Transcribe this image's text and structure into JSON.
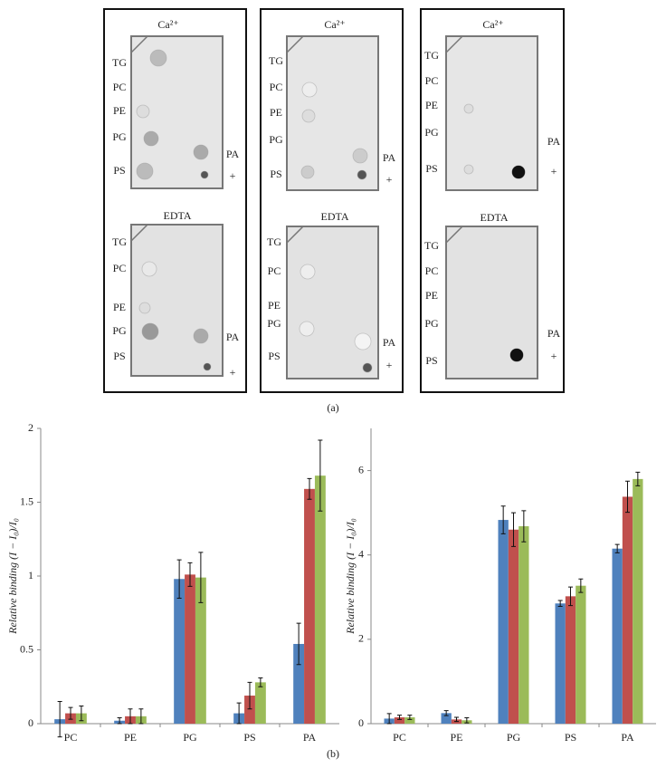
{
  "panel_a": {
    "caption": "(a)",
    "blots": [
      {
        "top": {
          "title": "Ca²⁺",
          "left_labels": [
            "TG",
            "PC",
            "PE",
            "PG",
            "PS"
          ],
          "right_labels": [
            "PA",
            "+"
          ]
        },
        "bottom": {
          "title": "EDTA",
          "left_labels": [
            "TG",
            "PC",
            "PE",
            "PG",
            "PS"
          ],
          "right_labels": [
            "PA",
            "+"
          ]
        }
      },
      {
        "top": {
          "title": "Ca²⁺",
          "left_labels": [
            "TG",
            "PC",
            "PE",
            "PG",
            "PS"
          ],
          "right_labels": [
            "PA",
            "+"
          ]
        },
        "bottom": {
          "title": "EDTA",
          "left_labels": [
            "TG",
            "PC",
            "PE",
            "PG",
            "PS"
          ],
          "right_labels": [
            "PA",
            "+"
          ]
        }
      },
      {
        "top": {
          "title": "Ca²⁺",
          "left_labels": [
            "TG",
            "PC",
            "PE",
            "PG",
            "PS"
          ],
          "right_labels": [
            "PA",
            "+"
          ]
        },
        "bottom": {
          "title": "EDTA",
          "left_labels": [
            "TG",
            "PC",
            "PE",
            "PG",
            "PS"
          ],
          "right_labels": [
            "PA",
            "+"
          ]
        }
      }
    ]
  },
  "panel_b": {
    "caption": "(b)"
  },
  "chart_data": [
    {
      "type": "bar",
      "y_label": "Relative binding (I − I₀)/I₀",
      "categories": [
        "PC",
        "PE",
        "PG",
        "PS",
        "PA"
      ],
      "series": [
        {
          "color": "#4f81bd",
          "values": [
            0.03,
            0.02,
            0.98,
            0.07,
            0.54
          ],
          "errors": [
            0.12,
            0.02,
            0.13,
            0.07,
            0.14
          ]
        },
        {
          "color": "#c0504d",
          "values": [
            0.07,
            0.05,
            1.01,
            0.19,
            1.59
          ],
          "errors": [
            0.04,
            0.05,
            0.08,
            0.09,
            0.07
          ]
        },
        {
          "color": "#9bbb59",
          "values": [
            0.07,
            0.05,
            0.99,
            0.28,
            1.68
          ],
          "errors": [
            0.05,
            0.05,
            0.17,
            0.03,
            0.24
          ]
        }
      ],
      "ylim": [
        0,
        2
      ],
      "yticks": [
        0,
        0.5,
        1,
        1.5,
        2
      ]
    },
    {
      "type": "bar",
      "y_label": "Relative binding (I − I₀)/I₀",
      "categories": [
        "PC",
        "PE",
        "PG",
        "PS",
        "PA"
      ],
      "series": [
        {
          "color": "#4f81bd",
          "values": [
            0.12,
            0.25,
            4.83,
            2.85,
            4.15
          ],
          "errors": [
            0.12,
            0.06,
            0.33,
            0.07,
            0.1
          ]
        },
        {
          "color": "#c0504d",
          "values": [
            0.15,
            0.1,
            4.6,
            3.02,
            5.38
          ],
          "errors": [
            0.05,
            0.05,
            0.4,
            0.22,
            0.37
          ]
        },
        {
          "color": "#9bbb59",
          "values": [
            0.15,
            0.08,
            4.68,
            3.27,
            5.8
          ],
          "errors": [
            0.05,
            0.06,
            0.37,
            0.16,
            0.16
          ]
        }
      ],
      "ylim": [
        0,
        7
      ],
      "yticks": [
        0,
        2,
        4,
        6
      ]
    }
  ]
}
